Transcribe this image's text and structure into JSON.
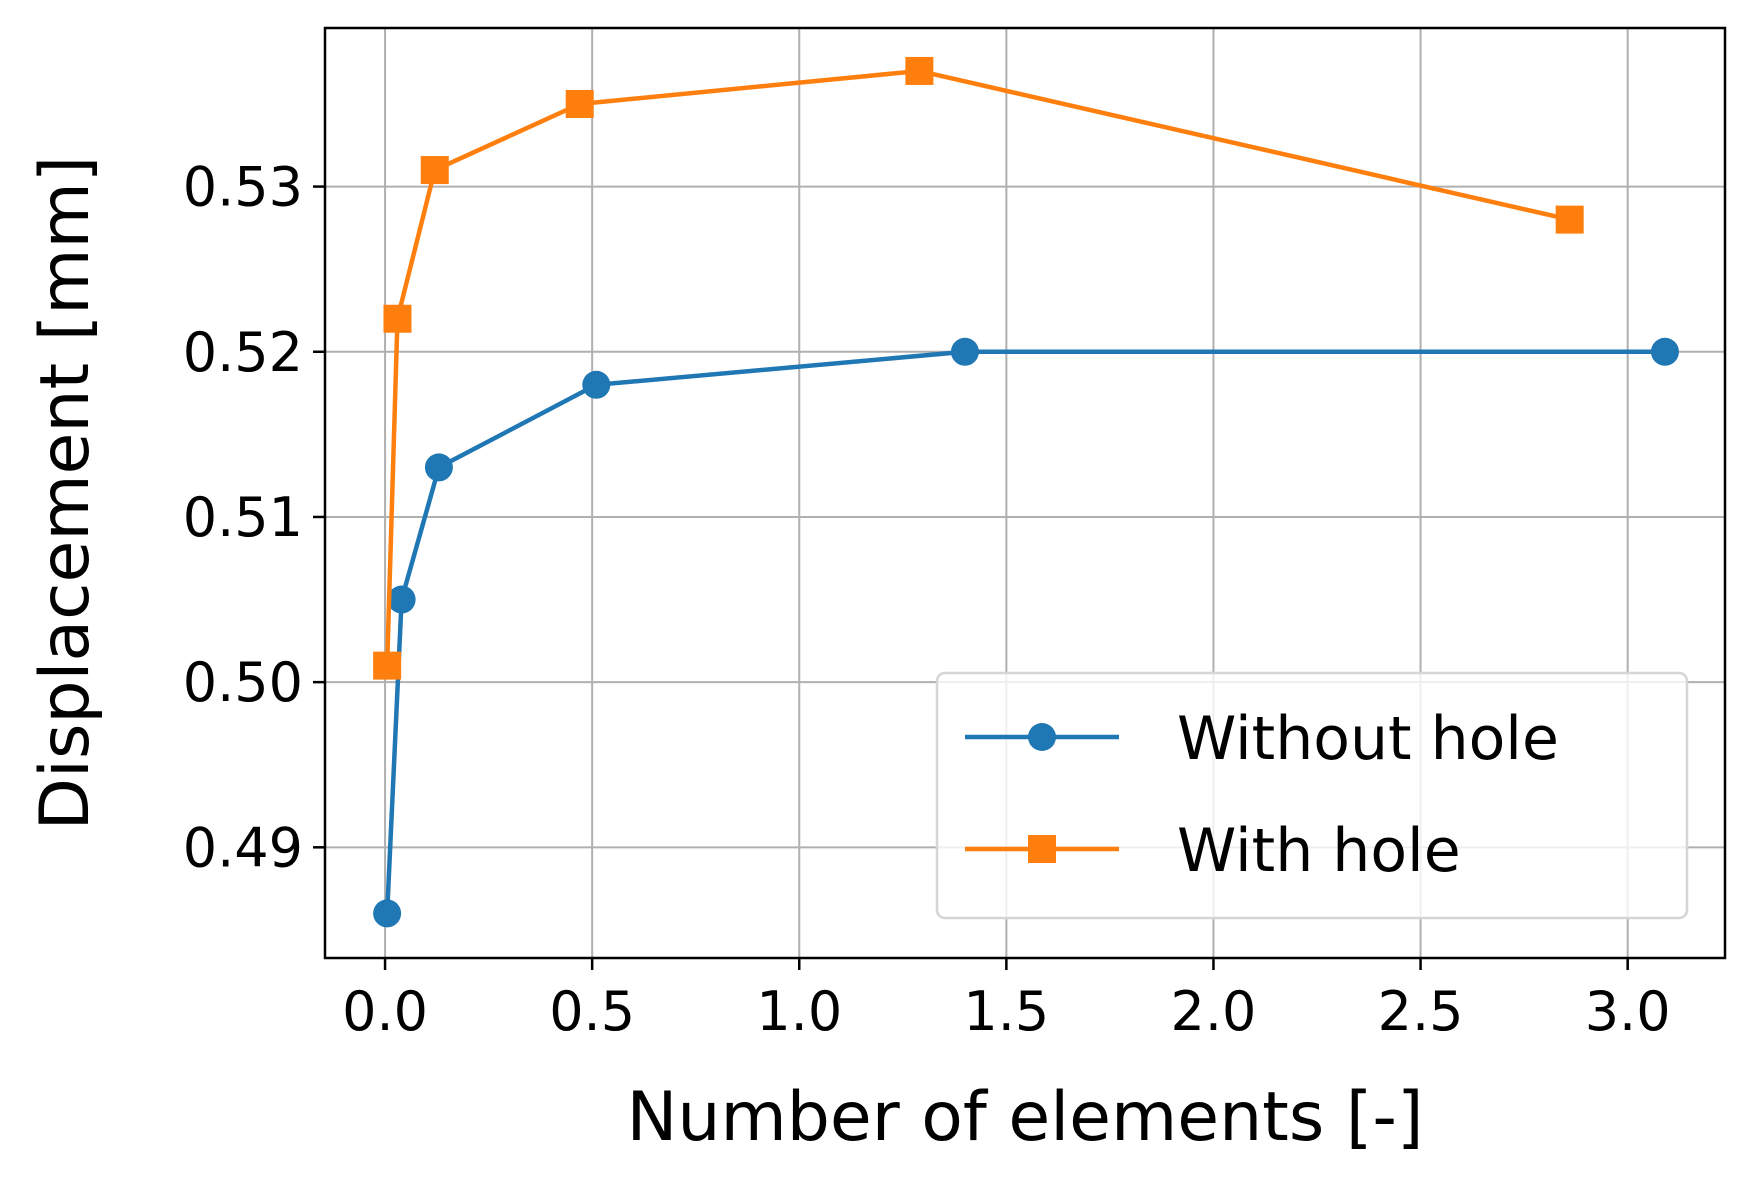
{
  "chart_data": {
    "type": "line",
    "title": "",
    "xlabel": "Number of elements [-]",
    "ylabel": "Displacement [mm]",
    "xlim": [
      -0.145,
      3.235
    ],
    "ylim": [
      0.4833,
      0.5396
    ],
    "xticks": [
      0.0,
      0.5,
      1.0,
      1.5,
      2.0,
      2.5,
      3.0
    ],
    "xtick_labels": [
      "0.0",
      "0.5",
      "1.0",
      "1.5",
      "2.0",
      "2.5",
      "3.0"
    ],
    "yticks": [
      0.49,
      0.5,
      0.51,
      0.52,
      0.53
    ],
    "ytick_labels": [
      "0.49",
      "0.50",
      "0.51",
      "0.52",
      "0.53"
    ],
    "grid": true,
    "legend_position": "lower-right",
    "series": [
      {
        "name": "Without hole",
        "color": "#1f77b4",
        "marker": "circle",
        "x": [
          0.005,
          0.04,
          0.13,
          0.51,
          1.4,
          3.09
        ],
        "y": [
          0.486,
          0.505,
          0.513,
          0.518,
          0.52,
          0.52
        ]
      },
      {
        "name": "With hole",
        "color": "#ff7f0e",
        "marker": "square",
        "x": [
          0.005,
          0.03,
          0.12,
          0.47,
          1.29,
          2.86
        ],
        "y": [
          0.501,
          0.522,
          0.531,
          0.535,
          0.537,
          0.528
        ]
      }
    ]
  }
}
